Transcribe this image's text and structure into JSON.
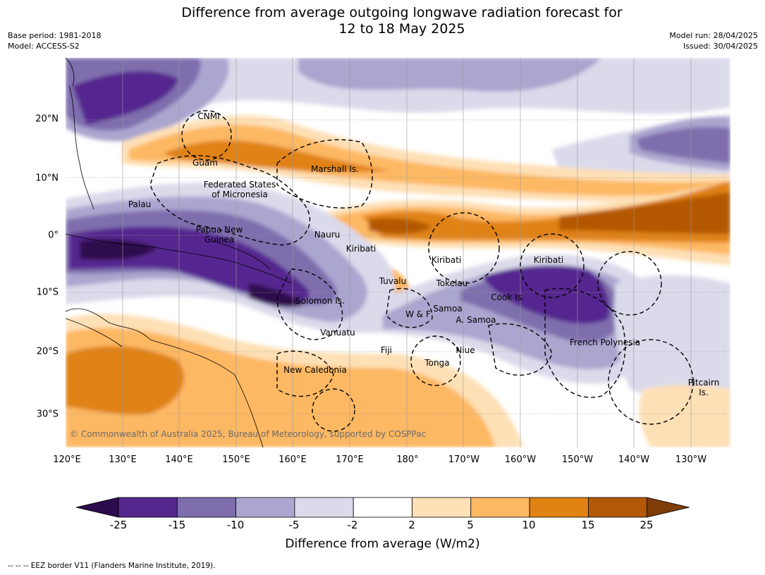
{
  "title": {
    "line1": "Difference from average outgoing longwave radiation forecast for",
    "line2": "12 to 18 May 2025"
  },
  "meta": {
    "base_period": "Base period: 1981-2018",
    "model": "Model: ACCESS-S2",
    "model_run": "Model run: 28/04/2025",
    "issued": "Issued: 30/04/2025"
  },
  "map": {
    "lat_labels": [
      "20°N",
      "10°N",
      "0°",
      "10°S",
      "20°S",
      "30°S"
    ],
    "lon_labels": [
      "120°E",
      "130°E",
      "140°E",
      "150°E",
      "160°E",
      "170°E",
      "180°",
      "170°W",
      "160°W",
      "150°W",
      "140°W",
      "130°W"
    ],
    "places": {
      "cnmi": "CNMI",
      "guam": "Guam",
      "marshall": "Marshall Is.",
      "palau": "Palau",
      "fsm": "Federated States\nof Micronesia",
      "png": "Papua New\nGuinea",
      "nauru": "Nauru",
      "kiribati_w": "Kiribati",
      "kiribati_c": "Kiribati",
      "kiribati_e": "Kiribati",
      "tuvalu": "Tuvalu",
      "tokelau": "Tokelau",
      "cook": "Cook Is.",
      "solomon": "Solomon Is.",
      "samoa": "Samoa",
      "wf": "W & F",
      "asamoa": "A. Samoa",
      "vanuatu": "Vanuatu",
      "fiji": "Fiji",
      "niue": "Niue",
      "tonga": "Tonga",
      "french_polynesia": "French Polynesia",
      "new_caledonia": "New Caledonia",
      "pitcairn": "Pitcairn\nIs."
    },
    "copyright": "© Commonwealth of Australia 2025, Bureau of Meteorology, supported by COSPPac"
  },
  "colorbar": {
    "ticks": [
      "-25",
      "-15",
      "-10",
      "-5",
      "-2",
      "2",
      "5",
      "10",
      "15",
      "25"
    ],
    "colors": [
      "#2d0a4e",
      "#54278f",
      "#7f6eae",
      "#aba6cf",
      "#dadaeb",
      "#ffffff",
      "#fee0b6",
      "#fdb863",
      "#e08214",
      "#b35806",
      "#7f3b08"
    ],
    "label": "Difference from average (W/m2)"
  },
  "footnote": "--  --  -- EEZ border V11 (Flanders Marine Institute, 2019).",
  "colors": {
    "strong_negative": "#54278f",
    "strong_positive": "#b35806"
  }
}
